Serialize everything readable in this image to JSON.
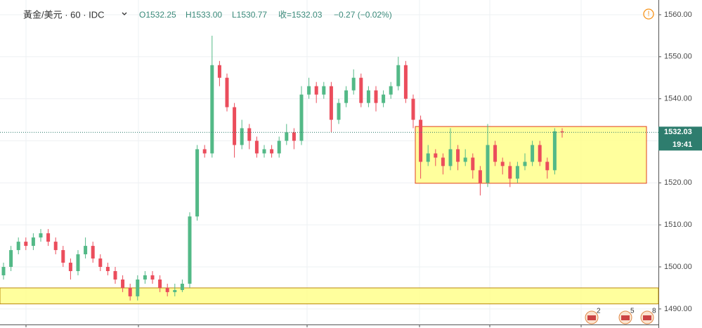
{
  "chart_data": {
    "type": "candlestick",
    "title": "黃金/美元 · 60 · IDC",
    "ohlc_labels": [
      "O1532.25",
      "H1533.00",
      "L1530.77",
      "收=1532.03",
      "−0.27 (−0.02%)"
    ],
    "open": [
      1498,
      1500,
      1504,
      1506,
      1505,
      1507,
      1508,
      1506,
      1504,
      1501,
      1499,
      1503,
      1505,
      1502,
      1500,
      1499,
      1497,
      1495,
      1493,
      1497,
      1498,
      1497,
      1495,
      1494,
      1494.5,
      1496,
      1512,
      1528,
      1527,
      1548,
      1545,
      1538,
      1529,
      1533,
      1530,
      1527,
      1528,
      1527,
      1530,
      1532,
      1530,
      1541,
      1543,
      1541,
      1543,
      1535,
      1539,
      1542,
      1545,
      1539,
      1542,
      1539,
      1541,
      1543,
      1548,
      1540,
      1535,
      1525,
      1527,
      1526,
      1524,
      1528,
      1525,
      1526,
      1523,
      1520,
      1529,
      1525,
      1524,
      1521,
      1524,
      1525,
      1529,
      1525,
      1523,
      1532.25
    ],
    "high": [
      1501,
      1505,
      1507,
      1507,
      1508,
      1509,
      1509,
      1507,
      1505,
      1502,
      1504,
      1507,
      1506,
      1503,
      1501,
      1500,
      1498,
      1496,
      1498,
      1499,
      1499,
      1498,
      1496,
      1496,
      1497,
      1513,
      1529,
      1529,
      1555,
      1549,
      1546,
      1539,
      1535,
      1534,
      1531,
      1529,
      1529,
      1531,
      1534,
      1533,
      1543,
      1545,
      1544,
      1544,
      1544,
      1540,
      1543,
      1547,
      1546,
      1543,
      1543,
      1542,
      1544,
      1550,
      1549,
      1541,
      1536,
      1529,
      1528,
      1527,
      1533,
      1529,
      1528,
      1527,
      1524,
      1534,
      1530,
      1526,
      1525,
      1525,
      1527,
      1530,
      1530,
      1526,
      1533,
      1533
    ],
    "low": [
      1497,
      1499,
      1503,
      1504,
      1504,
      1506,
      1505,
      1503,
      1500,
      1497,
      1498,
      1502,
      1501,
      1499,
      1498,
      1496,
      1494,
      1492,
      1492,
      1496,
      1496,
      1494,
      1493,
      1493,
      1494,
      1495,
      1511,
      1526,
      1526,
      1543,
      1537,
      1526,
      1528,
      1528,
      1526,
      1526,
      1526,
      1526,
      1529,
      1528,
      1529,
      1540,
      1539,
      1540,
      1532,
      1534,
      1538,
      1541,
      1538,
      1538,
      1537,
      1538,
      1540,
      1542,
      1539,
      1533,
      1521,
      1524,
      1524,
      1522,
      1523,
      1523,
      1524,
      1521,
      1517,
      1519,
      1524,
      1522,
      1519,
      1520,
      1523,
      1524,
      1524,
      1521,
      1522,
      1530.77
    ],
    "close": [
      1500,
      1504,
      1506,
      1505,
      1507,
      1508,
      1506,
      1504,
      1501,
      1499,
      1503,
      1505,
      1502,
      1500,
      1499,
      1497,
      1495,
      1493,
      1497,
      1498,
      1497,
      1495,
      1494,
      1494.5,
      1496,
      1512,
      1528,
      1527,
      1548,
      1545,
      1538,
      1529,
      1533,
      1530,
      1527,
      1528,
      1527,
      1530,
      1532,
      1530,
      1541,
      1543,
      1541,
      1543,
      1535,
      1539,
      1542,
      1545,
      1539,
      1542,
      1539,
      1541,
      1543,
      1548,
      1540,
      1535,
      1525,
      1527,
      1526,
      1524,
      1528,
      1525,
      1526,
      1523,
      1520,
      1529,
      1525,
      1524,
      1521,
      1524,
      1525,
      1529,
      1525,
      1523,
      1532.25,
      1532.03
    ],
    "up_color": "#53b987",
    "down_color": "#eb4d5c",
    "ylim": [
      1486.3,
      1563.5
    ],
    "yticks": [
      {
        "value": 1490,
        "label": "1490.00"
      },
      {
        "value": 1500,
        "label": "1500.00"
      },
      {
        "value": 1510,
        "label": "1510.00"
      },
      {
        "value": 1520,
        "label": "1520.00"
      },
      {
        "value": 1530,
        "label": "1530.00"
      },
      {
        "value": 1540,
        "label": "1540.00"
      },
      {
        "value": 1550,
        "label": "1550.00"
      },
      {
        "value": 1560,
        "label": "1560.00"
      }
    ],
    "grid": true,
    "last_price": 1532.03,
    "countdown": "19:41",
    "zones": [
      {
        "top": 1495,
        "bottom": 1491.2
      },
      {
        "top": 1533.4,
        "bottom": 1519.9
      }
    ],
    "events": [
      2,
      5,
      8
    ]
  }
}
